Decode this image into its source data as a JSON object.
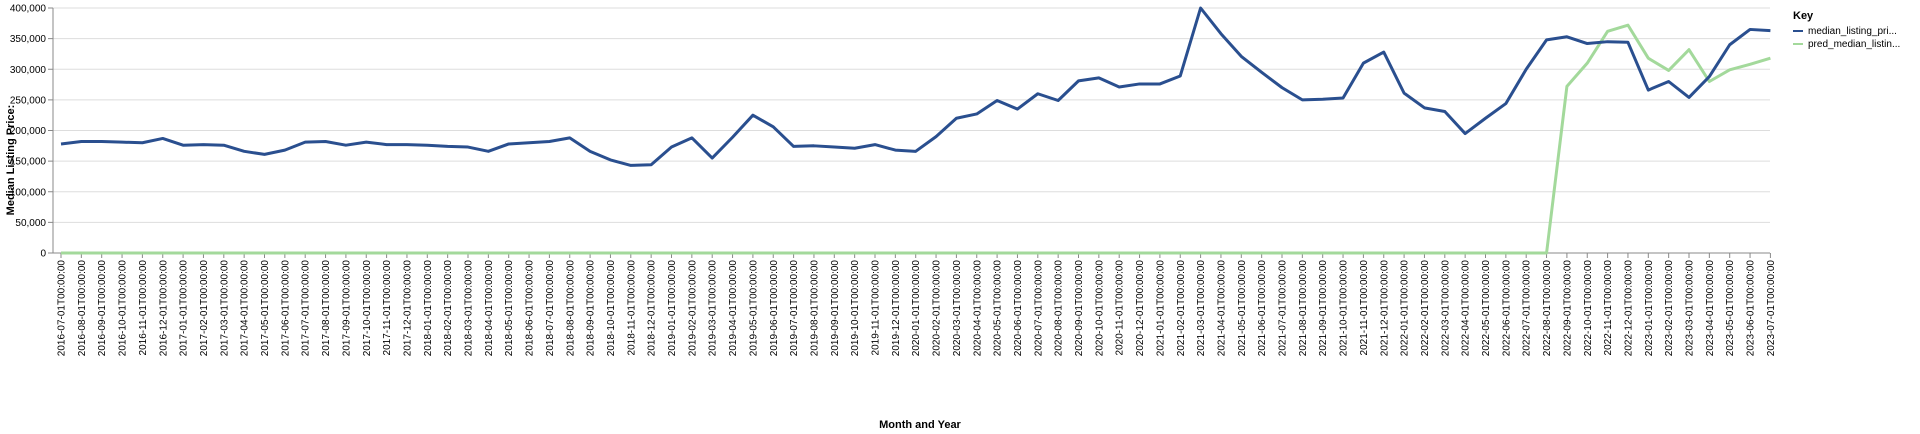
{
  "chart_data": {
    "type": "line",
    "xlabel": "Month and Year",
    "ylabel": "Median Listing Price:",
    "ylim": [
      0,
      400000
    ],
    "y_ticks": [
      "0",
      "50,000",
      "100,000",
      "150,000",
      "200,000",
      "250,000",
      "300,000",
      "350,000",
      "400,000"
    ],
    "y_tick_values": [
      0,
      50000,
      100000,
      150000,
      200000,
      250000,
      300000,
      350000,
      400000
    ],
    "grid": true,
    "legend": {
      "title": "Key",
      "placement": "top-right"
    },
    "colors": {
      "median_listing_price": "#2a4f8f",
      "pred_median_listing_price": "#a3d99b"
    },
    "x": [
      "2016-07-01T00:00:00",
      "2016-08-01T00:00:00",
      "2016-09-01T00:00:00",
      "2016-10-01T00:00:00",
      "2016-11-01T00:00:00",
      "2016-12-01T00:00:00",
      "2017-01-01T00:00:00",
      "2017-02-01T00:00:00",
      "2017-03-01T00:00:00",
      "2017-04-01T00:00:00",
      "2017-05-01T00:00:00",
      "2017-06-01T00:00:00",
      "2017-07-01T00:00:00",
      "2017-08-01T00:00:00",
      "2017-09-01T00:00:00",
      "2017-10-01T00:00:00",
      "2017-11-01T00:00:00",
      "2017-12-01T00:00:00",
      "2018-01-01T00:00:00",
      "2018-02-01T00:00:00",
      "2018-03-01T00:00:00",
      "2018-04-01T00:00:00",
      "2018-05-01T00:00:00",
      "2018-06-01T00:00:00",
      "2018-07-01T00:00:00",
      "2018-08-01T00:00:00",
      "2018-09-01T00:00:00",
      "2018-10-01T00:00:00",
      "2018-11-01T00:00:00",
      "2018-12-01T00:00:00",
      "2019-01-01T00:00:00",
      "2019-02-01T00:00:00",
      "2019-03-01T00:00:00",
      "2019-04-01T00:00:00",
      "2019-05-01T00:00:00",
      "2019-06-01T00:00:00",
      "2019-07-01T00:00:00",
      "2019-08-01T00:00:00",
      "2019-09-01T00:00:00",
      "2019-10-01T00:00:00",
      "2019-11-01T00:00:00",
      "2019-12-01T00:00:00",
      "2020-01-01T00:00:00",
      "2020-02-01T00:00:00",
      "2020-03-01T00:00:00",
      "2020-04-01T00:00:00",
      "2020-05-01T00:00:00",
      "2020-06-01T00:00:00",
      "2020-07-01T00:00:00",
      "2020-08-01T00:00:00",
      "2020-09-01T00:00:00",
      "2020-10-01T00:00:00",
      "2020-11-01T00:00:00",
      "2020-12-01T00:00:00",
      "2021-01-01T00:00:00",
      "2021-02-01T00:00:00",
      "2021-03-01T00:00:00",
      "2021-04-01T00:00:00",
      "2021-05-01T00:00:00",
      "2021-06-01T00:00:00",
      "2021-07-01T00:00:00",
      "2021-08-01T00:00:00",
      "2021-09-01T00:00:00",
      "2021-10-01T00:00:00",
      "2021-11-01T00:00:00",
      "2021-12-01T00:00:00",
      "2022-01-01T00:00:00",
      "2022-02-01T00:00:00",
      "2022-03-01T00:00:00",
      "2022-04-01T00:00:00",
      "2022-05-01T00:00:00",
      "2022-06-01T00:00:00",
      "2022-07-01T00:00:00",
      "2022-08-01T00:00:00",
      "2022-09-01T00:00:00",
      "2022-10-01T00:00:00",
      "2022-11-01T00:00:00",
      "2022-12-01T00:00:00",
      "2023-01-01T00:00:00",
      "2023-02-01T00:00:00",
      "2023-03-01T00:00:00",
      "2023-04-01T00:00:00",
      "2023-05-01T00:00:00",
      "2023-06-01T00:00:00",
      "2023-07-01T00:00:00"
    ],
    "series": [
      {
        "name": "median_listing_pri...",
        "values": [
          178000,
          182000,
          182000,
          181000,
          180000,
          187000,
          176000,
          177000,
          176000,
          166000,
          161000,
          168000,
          181000,
          182000,
          176000,
          181000,
          177000,
          177000,
          176000,
          174000,
          173000,
          166000,
          178000,
          180000,
          182000,
          188000,
          166000,
          152000,
          143000,
          144000,
          173000,
          188000,
          155000,
          189000,
          225000,
          206000,
          174000,
          175000,
          173000,
          171000,
          177000,
          168000,
          166000,
          190000,
          220000,
          227000,
          249000,
          235000,
          260000,
          249000,
          281000,
          286000,
          271000,
          276000,
          276000,
          289000,
          400000,
          358000,
          321000,
          295000,
          270000,
          250000,
          251000,
          253000,
          310000,
          328000,
          261000,
          237000,
          231000,
          195000,
          220000,
          244000,
          300000,
          348000,
          353000,
          342000,
          345000,
          344000,
          266000,
          280000,
          254000,
          288000,
          340000,
          365000,
          363000
        ]
      },
      {
        "name": "pred_median_listin...",
        "values": [
          0,
          0,
          0,
          0,
          0,
          0,
          0,
          0,
          0,
          0,
          0,
          0,
          0,
          0,
          0,
          0,
          0,
          0,
          0,
          0,
          0,
          0,
          0,
          0,
          0,
          0,
          0,
          0,
          0,
          0,
          0,
          0,
          0,
          0,
          0,
          0,
          0,
          0,
          0,
          0,
          0,
          0,
          0,
          0,
          0,
          0,
          0,
          0,
          0,
          0,
          0,
          0,
          0,
          0,
          0,
          0,
          0,
          0,
          0,
          0,
          0,
          0,
          0,
          0,
          0,
          0,
          0,
          0,
          0,
          0,
          0,
          0,
          0,
          0,
          272000,
          310000,
          362000,
          372000,
          318000,
          298000,
          332000,
          280000,
          299000,
          308000,
          318000
        ]
      }
    ]
  }
}
